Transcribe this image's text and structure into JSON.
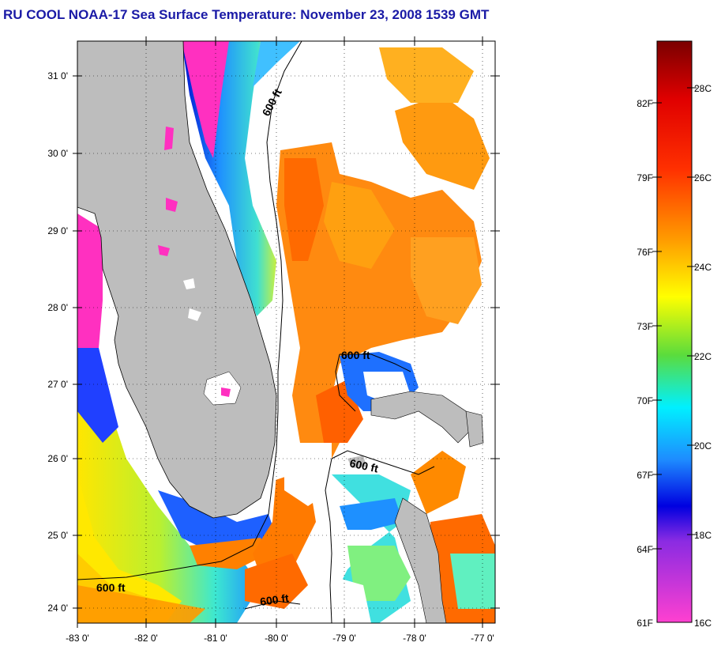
{
  "title": "RU COOL  NOAA-17  Sea Surface Temperature:  November 23, 2008 1539 GMT",
  "map": {
    "latitude_labels": [
      "31 0'",
      "30 0'",
      "29 0'",
      "28 0'",
      "27 0'",
      "26 0'",
      "25 0'",
      "24 0'"
    ],
    "longitude_labels": [
      "-83 0'",
      "-82 0'",
      "-81 0'",
      "-80 0'",
      "-79 0'",
      "-78 0'",
      "-77 0'"
    ],
    "isobath_label": "600 ft",
    "land_color": "#bdbdbd",
    "cloud_color": "#ffffff"
  },
  "colorbar": {
    "fahrenheit_labels": [
      "82F",
      "79F",
      "76F",
      "73F",
      "70F",
      "67F",
      "64F",
      "61F"
    ],
    "celsius_labels": [
      "28C",
      "26C",
      "24C",
      "22C",
      "20C",
      "18C",
      "16C"
    ],
    "colors": [
      "#8b0000",
      "#ff0000",
      "#ff6a00",
      "#ffd000",
      "#ffff00",
      "#32cd32",
      "#00ffff",
      "#1e90ff",
      "#0000cd",
      "#8a2be2",
      "#ff33cc"
    ]
  }
}
